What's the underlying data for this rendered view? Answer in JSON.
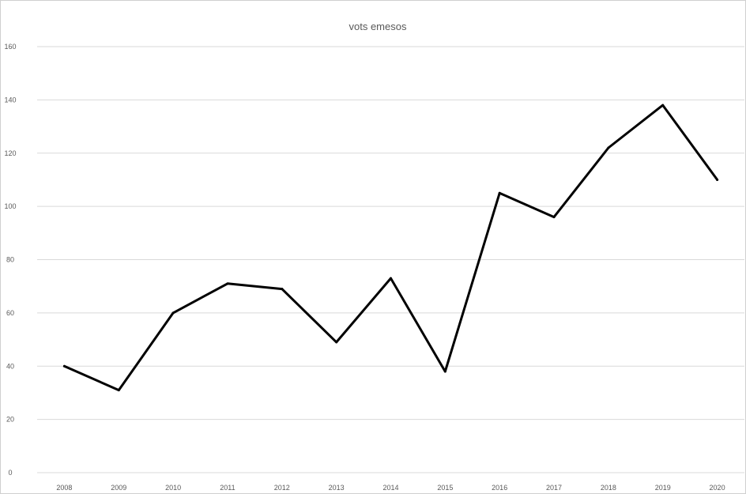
{
  "chart_data": {
    "type": "line",
    "title": "vots emesos",
    "xlabel": "",
    "ylabel": "",
    "categories": [
      "2008",
      "2009",
      "2010",
      "2011",
      "2012",
      "2013",
      "2014",
      "2015",
      "2016",
      "2017",
      "2018",
      "2019",
      "2020"
    ],
    "series": [
      {
        "values": [
          40,
          31,
          60,
          71,
          69,
          49,
          73,
          38,
          105,
          96,
          122,
          138,
          110
        ]
      }
    ],
    "ylim": [
      0,
      160
    ],
    "yticks": [
      0,
      20,
      40,
      60,
      80,
      100,
      120,
      140,
      160
    ],
    "grid": true,
    "legend": "none",
    "colors": {
      "line": "#000000",
      "grid": "#d9d9d9",
      "text": "#595959"
    }
  }
}
